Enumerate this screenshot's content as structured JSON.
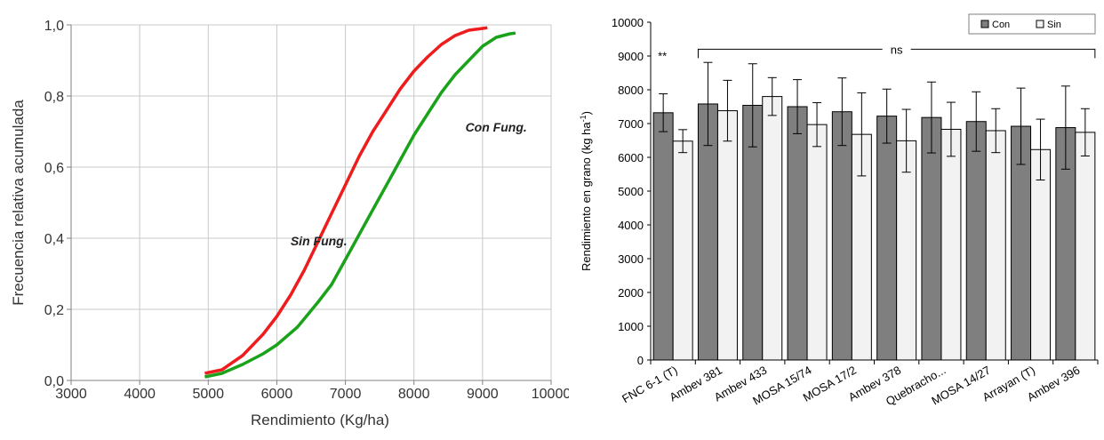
{
  "chart_data": [
    {
      "type": "line",
      "title": "",
      "xlabel": "Rendimiento (Kg/ha)",
      "ylabel": "Frecuencia relativa acumulada",
      "xlim": [
        3000,
        10000
      ],
      "ylim": [
        0,
        1
      ],
      "x_ticks": [
        "3000",
        "4000",
        "5000",
        "6000",
        "7000",
        "8000",
        "9000",
        "10000"
      ],
      "y_ticks": [
        "0,0",
        "0,2",
        "0,4",
        "0,6",
        "0,8",
        "1,0"
      ],
      "grid": true,
      "series": [
        {
          "name": "Sin Fung.",
          "color": "#ee1c1c",
          "x": [
            4950,
            5200,
            5500,
            5800,
            6000,
            6200,
            6400,
            6600,
            6800,
            7000,
            7200,
            7400,
            7600,
            7800,
            8000,
            8200,
            8400,
            8600,
            8800,
            9000,
            9070
          ],
          "y": [
            0.02,
            0.03,
            0.07,
            0.13,
            0.18,
            0.24,
            0.31,
            0.39,
            0.47,
            0.55,
            0.63,
            0.7,
            0.76,
            0.82,
            0.87,
            0.91,
            0.945,
            0.97,
            0.985,
            0.99,
            0.992
          ]
        },
        {
          "name": "Con Fung.",
          "color": "#1aa31a",
          "x": [
            4950,
            5200,
            5500,
            5800,
            6000,
            6300,
            6600,
            6800,
            7000,
            7200,
            7400,
            7600,
            7800,
            8000,
            8200,
            8400,
            8600,
            8800,
            9000,
            9200,
            9400,
            9480
          ],
          "y": [
            0.01,
            0.02,
            0.045,
            0.075,
            0.1,
            0.15,
            0.22,
            0.27,
            0.34,
            0.41,
            0.48,
            0.55,
            0.62,
            0.69,
            0.75,
            0.81,
            0.86,
            0.9,
            0.94,
            0.965,
            0.975,
            0.977
          ]
        }
      ],
      "annotations": [
        {
          "text": "Con Fung.",
          "x": 8750,
          "y": 0.7
        },
        {
          "text": "Sin Fung.",
          "x": 6200,
          "y": 0.38
        }
      ]
    },
    {
      "type": "bar",
      "title": "",
      "xlabel": "",
      "ylabel": "Rendimiento en grano (kg ha",
      "ylabel_superscript": "-1",
      "ylabel_close": ")",
      "ylim": [
        0,
        10000
      ],
      "y_ticks": [
        "0",
        "1000",
        "2000",
        "3000",
        "4000",
        "5000",
        "6000",
        "7000",
        "8000",
        "9000",
        "10000"
      ],
      "categories": [
        "FNC 6-1 (T)",
        "Ambev 381",
        "Ambev 433",
        "MOSA 15/74",
        "MOSA 17/2",
        "Ambev 378",
        "Quebracho...",
        "MOSA 14/27",
        "Arrayan (T)",
        "Ambev 396"
      ],
      "legend_position": "top-right",
      "series": [
        {
          "name": "Con",
          "color": "#7f7f7f",
          "values": [
            7320,
            7580,
            7540,
            7500,
            7350,
            7220,
            7180,
            7060,
            6920,
            6880
          ],
          "error": [
            560,
            1230,
            1230,
            800,
            1000,
            800,
            1050,
            880,
            1130,
            1230
          ]
        },
        {
          "name": "Sin",
          "color": "#f2f2f2",
          "values": [
            6480,
            7380,
            7800,
            6970,
            6680,
            6490,
            6830,
            6790,
            6230,
            6740
          ],
          "error": [
            340,
            900,
            560,
            650,
            1230,
            930,
            800,
            650,
            900,
            700
          ]
        }
      ],
      "significance": [
        {
          "label": "**",
          "category": "FNC 6-1 (T)"
        },
        {
          "label": "ns",
          "from": "Ambev 381",
          "to": "Ambev 396"
        }
      ]
    }
  ]
}
